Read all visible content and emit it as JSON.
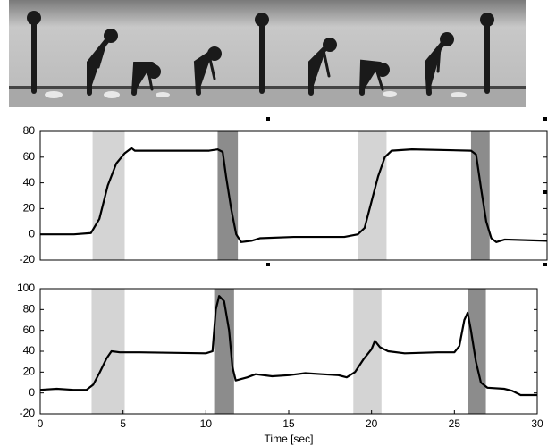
{
  "chart_data": [
    {
      "type": "line",
      "ylim": [
        -20,
        80
      ],
      "yticks": [
        -20,
        0,
        20,
        40,
        60,
        80
      ],
      "xlim": [
        0,
        30
      ],
      "shaded_regions": [
        {
          "start": 3.1,
          "end": 5.0,
          "color": "#d4d4d4"
        },
        {
          "start": 10.5,
          "end": 11.7,
          "color": "#8c8c8c"
        },
        {
          "start": 18.8,
          "end": 20.5,
          "color": "#d4d4d4"
        },
        {
          "start": 25.5,
          "end": 26.6,
          "color": "#8c8c8c"
        }
      ],
      "color": "#000000",
      "x": [
        0,
        2,
        3,
        3.5,
        4,
        4.5,
        5,
        5.4,
        5.6,
        7,
        10,
        10.5,
        10.8,
        11,
        11.3,
        11.6,
        11.9,
        12.5,
        13,
        15,
        18,
        18.8,
        19.2,
        19.6,
        20,
        20.4,
        20.8,
        22,
        25.5,
        25.8,
        26.1,
        26.4,
        26.7,
        27,
        27.5,
        30
      ],
      "values": [
        0,
        0,
        1,
        12,
        38,
        55,
        63,
        67,
        65,
        65,
        65,
        66,
        64,
        45,
        20,
        0,
        -6,
        -5,
        -3,
        -2,
        -2,
        0,
        5,
        25,
        45,
        60,
        65,
        66,
        65,
        62,
        35,
        10,
        -3,
        -6,
        -4,
        -5
      ]
    },
    {
      "type": "line",
      "ylim": [
        -20,
        100
      ],
      "yticks": [
        -20,
        0,
        20,
        40,
        60,
        80,
        100
      ],
      "xlim": [
        0,
        30
      ],
      "xticks": [
        0,
        5,
        10,
        15,
        20,
        25,
        30
      ],
      "xlabel": "Time [sec]",
      "shaded_regions": [
        {
          "start": 3.1,
          "end": 5.1,
          "color": "#d4d4d4"
        },
        {
          "start": 10.5,
          "end": 11.7,
          "color": "#8c8c8c"
        },
        {
          "start": 18.9,
          "end": 20.6,
          "color": "#d4d4d4"
        },
        {
          "start": 25.8,
          "end": 26.9,
          "color": "#8c8c8c"
        }
      ],
      "color": "#000000",
      "x": [
        0,
        1,
        2,
        2.8,
        3.2,
        3.6,
        4,
        4.3,
        4.8,
        6,
        10,
        10.4,
        10.6,
        10.8,
        11.1,
        11.4,
        11.6,
        11.8,
        12.5,
        13,
        14,
        15,
        16,
        17,
        18,
        18.5,
        19,
        19.5,
        20,
        20.2,
        20.5,
        21,
        22,
        24,
        25,
        25.3,
        25.6,
        25.8,
        26,
        26.3,
        26.6,
        27,
        28,
        28.5,
        29,
        30
      ],
      "values": [
        3,
        4,
        3,
        3,
        8,
        20,
        33,
        40,
        39,
        39,
        38,
        40,
        80,
        93,
        88,
        60,
        25,
        12,
        15,
        18,
        16,
        17,
        19,
        18,
        17,
        15,
        20,
        32,
        42,
        50,
        44,
        40,
        38,
        39,
        39,
        45,
        70,
        77,
        60,
        30,
        10,
        5,
        4,
        2,
        -2,
        -2
      ]
    }
  ]
}
